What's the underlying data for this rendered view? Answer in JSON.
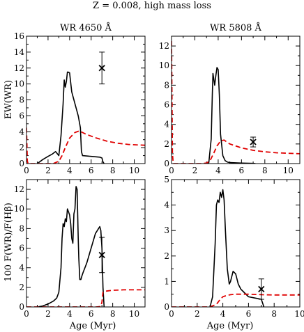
{
  "figure": {
    "title": "Z = 0.008, high mass loss",
    "xlabel": "Age (Myr)",
    "ylabel_top": "EW(WR)",
    "ylabel_bottom": "100 F(WR)/F(Hβ)"
  },
  "chart_data": [
    {
      "type": "line",
      "title": "WR 4650 Å",
      "xlabel": "",
      "ylabel": "EW(WR)",
      "xlim": [
        0,
        11
      ],
      "ylim": [
        0,
        16
      ],
      "xticks": [
        0,
        2,
        4,
        6,
        8,
        10
      ],
      "yticks": [
        0,
        2,
        4,
        6,
        8,
        10,
        12,
        14,
        16
      ],
      "series": [
        {
          "style": "solid",
          "color": "#000000",
          "x": [
            1.0,
            1.5,
            2.0,
            2.4,
            2.7,
            3.0,
            3.2,
            3.4,
            3.45,
            3.5,
            3.6,
            3.7,
            3.8,
            3.85,
            4.0,
            4.2,
            4.4,
            4.6,
            4.8,
            5.0,
            5.1,
            5.2,
            6.0,
            6.8,
            7.0,
            7.1,
            7.2
          ],
          "y": [
            0.0,
            0.5,
            0.9,
            1.2,
            1.5,
            1.0,
            3.5,
            7.5,
            9.0,
            10.5,
            9.6,
            10.3,
            11.5,
            11.5,
            11.4,
            9.0,
            8.0,
            7.0,
            6.0,
            4.5,
            1.5,
            1.0,
            0.9,
            0.8,
            0.7,
            0.2,
            0.0
          ]
        },
        {
          "style": "dashed",
          "color": "#e00000",
          "x": [
            0.0,
            0.08,
            0.15,
            0.4,
            1.5,
            2.5,
            3.0,
            3.3,
            3.6,
            4.0,
            4.5,
            4.9,
            5.5,
            6.5,
            7.5,
            8.5,
            9.5,
            11.0
          ],
          "y": [
            4.5,
            0.3,
            0.0,
            0.0,
            0.0,
            0.0,
            0.3,
            1.0,
            2.0,
            3.2,
            3.9,
            4.1,
            3.7,
            3.2,
            2.8,
            2.55,
            2.4,
            2.3
          ]
        }
      ],
      "observation": {
        "x": 7.0,
        "y": 12.0,
        "y_err": 2.0
      }
    },
    {
      "type": "line",
      "title": "WR 5808 Å",
      "xlabel": "",
      "ylabel": "",
      "xlim": [
        0,
        11
      ],
      "ylim": [
        0,
        13
      ],
      "xticks": [
        0,
        2,
        4,
        6,
        8,
        10
      ],
      "yticks": [
        0,
        2,
        4,
        6,
        8,
        10,
        12
      ],
      "series": [
        {
          "style": "solid",
          "color": "#000000",
          "x": [
            3.0,
            3.2,
            3.4,
            3.5,
            3.55,
            3.7,
            3.8,
            3.9,
            4.0,
            4.1,
            4.2,
            4.4,
            4.6,
            4.8,
            5.0,
            6.0,
            7.0,
            7.2
          ],
          "y": [
            0.0,
            0.1,
            2.5,
            7.0,
            9.2,
            8.0,
            9.0,
            9.8,
            9.6,
            7.0,
            3.0,
            0.8,
            0.3,
            0.15,
            0.1,
            0.05,
            0.02,
            0.0
          ]
        },
        {
          "style": "dashed",
          "color": "#e00000",
          "x": [
            0.0,
            0.08,
            0.15,
            0.4,
            1.5,
            2.5,
            3.0,
            3.3,
            3.6,
            3.9,
            4.2,
            4.5,
            5.0,
            6.0,
            7.0,
            8.0,
            9.0,
            10.0,
            11.0
          ],
          "y": [
            12.5,
            1.0,
            0.0,
            0.0,
            0.0,
            0.0,
            0.05,
            0.3,
            1.0,
            1.8,
            2.3,
            2.4,
            2.0,
            1.6,
            1.35,
            1.2,
            1.1,
            1.05,
            1.0
          ]
        }
      ],
      "observation": {
        "x": 7.0,
        "y": 2.2,
        "y_err": 0.5
      }
    },
    {
      "type": "line",
      "title": "",
      "xlabel": "Age (Myr)",
      "ylabel": "100 F(WR)/F(Hβ)",
      "xlim": [
        0,
        11
      ],
      "ylim": [
        0,
        13
      ],
      "xticks": [
        0,
        2,
        4,
        6,
        8,
        10
      ],
      "yticks": [
        0,
        2,
        4,
        6,
        8,
        10,
        12
      ],
      "series": [
        {
          "style": "solid",
          "color": "#000000",
          "x": [
            1.0,
            1.5,
            2.0,
            2.5,
            2.8,
            3.0,
            3.2,
            3.3,
            3.4,
            3.5,
            3.6,
            3.7,
            3.8,
            3.9,
            4.0,
            4.1,
            4.2,
            4.3,
            4.4,
            4.5,
            4.6,
            4.7,
            4.8,
            4.85,
            4.95,
            5.05,
            5.15,
            5.25,
            5.6,
            6.0,
            6.4,
            6.8,
            6.9,
            7.0,
            7.1,
            7.2
          ],
          "y": [
            0.0,
            0.1,
            0.3,
            0.6,
            0.9,
            1.5,
            4.0,
            7.0,
            8.5,
            8.2,
            9.0,
            8.7,
            10.0,
            9.7,
            9.4,
            8.5,
            7.0,
            6.5,
            9.5,
            10.0,
            12.3,
            12.0,
            7.0,
            5.0,
            2.8,
            2.8,
            3.2,
            3.5,
            4.5,
            6.0,
            7.5,
            8.2,
            7.8,
            6.0,
            2.0,
            0.0
          ]
        },
        {
          "style": "dashed",
          "color": "#e00000",
          "x": [
            0.0,
            2.0,
            4.0,
            6.0,
            6.5,
            6.9,
            7.0,
            7.1,
            7.3,
            7.6,
            8.0,
            9.0,
            10.0,
            11.0
          ],
          "y": [
            0.0,
            0.0,
            0.0,
            0.0,
            0.0,
            0.05,
            0.5,
            1.5,
            1.6,
            1.65,
            1.7,
            1.75,
            1.75,
            1.75
          ]
        }
      ],
      "observation": {
        "x": 7.0,
        "y": 5.3,
        "y_err": 1.8
      }
    },
    {
      "type": "line",
      "title": "",
      "xlabel": "Age (Myr)",
      "ylabel": "",
      "xlim": [
        0,
        10
      ],
      "ylim": [
        0,
        5
      ],
      "xticks": [
        0,
        2,
        4,
        6,
        8,
        10
      ],
      "yticks": [
        0,
        1,
        2,
        3,
        4,
        5
      ],
      "series": [
        {
          "style": "solid",
          "color": "#000000",
          "x": [
            3.0,
            3.2,
            3.4,
            3.5,
            3.6,
            3.7,
            3.8,
            3.9,
            4.0,
            4.1,
            4.2,
            4.35,
            4.5,
            4.6,
            4.8,
            5.0,
            5.2,
            5.4,
            5.6,
            5.8,
            6.0,
            6.5,
            7.0,
            7.2
          ],
          "y": [
            0.0,
            0.4,
            2.5,
            4.0,
            4.2,
            4.1,
            4.5,
            4.3,
            4.6,
            4.2,
            3.0,
            1.5,
            0.9,
            1.0,
            1.4,
            1.3,
            0.9,
            0.7,
            0.6,
            0.5,
            0.4,
            0.35,
            0.3,
            0.0
          ]
        },
        {
          "style": "dashed",
          "color": "#e00000",
          "x": [
            0.0,
            2.0,
            3.0,
            3.5,
            3.8,
            4.0,
            4.3,
            4.6,
            5.0,
            6.0,
            7.0,
            8.0,
            9.0,
            10.0
          ],
          "y": [
            0.0,
            0.0,
            0.0,
            0.1,
            0.3,
            0.4,
            0.45,
            0.48,
            0.5,
            0.5,
            0.48,
            0.47,
            0.47,
            0.47
          ]
        }
      ],
      "observation": {
        "x": 7.0,
        "y": 0.7,
        "y_err": 0.4
      }
    }
  ]
}
